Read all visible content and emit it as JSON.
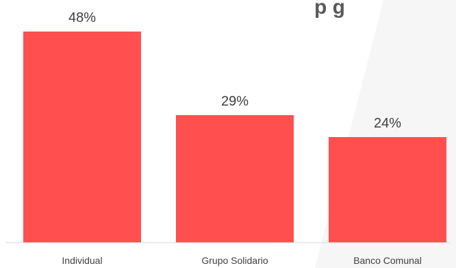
{
  "colors": {
    "bar": "#ff4f4f",
    "text": "#404040",
    "axis": "#d9d9d9"
  },
  "chart_data": {
    "type": "bar",
    "title": "",
    "title_visible_fragment": "p     g",
    "categories": [
      "Individual",
      "Grupo Solidario",
      "Banco Comunal"
    ],
    "values": [
      48,
      29,
      24
    ],
    "data_labels": [
      "48%",
      "29%",
      "24%"
    ],
    "ylim": [
      0,
      48
    ],
    "grid": false,
    "legend": "none"
  }
}
